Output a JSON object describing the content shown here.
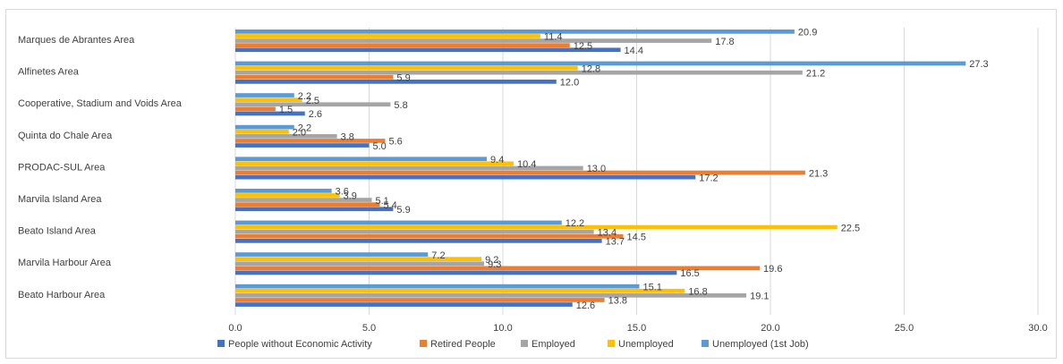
{
  "chart_data": {
    "type": "bar",
    "orientation": "horizontal",
    "title": "",
    "xlabel": "",
    "ylabel": "",
    "xlim": [
      0,
      30
    ],
    "xticks": [
      "0.0",
      "5.0",
      "10.0",
      "15.0",
      "20.0",
      "25.0",
      "30.0"
    ],
    "grid": true,
    "legend_position": "bottom",
    "categories": [
      "Marques de Abrantes Area",
      "Alfinetes Area",
      "Cooperative, Stadium and Voids Area",
      "Quinta do Chale Area",
      "PRODAC-SUL Area",
      "Marvila Island Area",
      "Beato Island Area",
      "Marvila Harbour Area",
      "Beato Harbour Area"
    ],
    "series": [
      {
        "name": "People without Economic  Activity",
        "color": "#4472C4",
        "values": [
          14.4,
          12.0,
          2.6,
          5.0,
          17.2,
          5.9,
          13.7,
          16.5,
          12.6
        ],
        "labels": [
          "14.4",
          "12.0",
          "2.6",
          "5.0",
          "17.2",
          "5.9",
          "13.7",
          "16.5",
          "12.6"
        ]
      },
      {
        "name": "Retired People",
        "color": "#ED7D31",
        "values": [
          12.5,
          5.9,
          1.5,
          5.6,
          21.3,
          5.4,
          14.5,
          19.6,
          13.8
        ],
        "labels": [
          "12.5",
          "5.9",
          "1.5",
          "5.6",
          "21.3",
          "5.4",
          "14.5",
          "19.6",
          "13.8"
        ]
      },
      {
        "name": "Employed",
        "color": "#A5A5A5",
        "values": [
          17.8,
          21.2,
          5.8,
          3.8,
          13.0,
          5.1,
          13.4,
          9.3,
          19.1
        ],
        "labels": [
          "17.8",
          "21.2",
          "5.8",
          "3.8",
          "13.0",
          "5.1",
          "13.4",
          "9.3",
          "19.1"
        ]
      },
      {
        "name": "Unemployed",
        "color": "#FFC000",
        "values": [
          11.4,
          12.8,
          2.5,
          2.0,
          10.4,
          3.9,
          22.5,
          9.2,
          16.8
        ],
        "labels": [
          "11.4",
          "12.8",
          "2.5",
          "2.0",
          "10.4",
          "3.9",
          "22.5",
          "9.2",
          "16.8"
        ]
      },
      {
        "name": "Unemployed (1st Job)",
        "color": "#5B9BD5",
        "values": [
          20.9,
          27.3,
          2.2,
          2.2,
          9.4,
          3.6,
          12.2,
          7.2,
          15.1
        ],
        "labels": [
          "20.9",
          "27.3",
          "2.2",
          "2.2",
          "9.4",
          "3.6",
          "12.2",
          "7.2",
          "15.1"
        ]
      }
    ]
  }
}
